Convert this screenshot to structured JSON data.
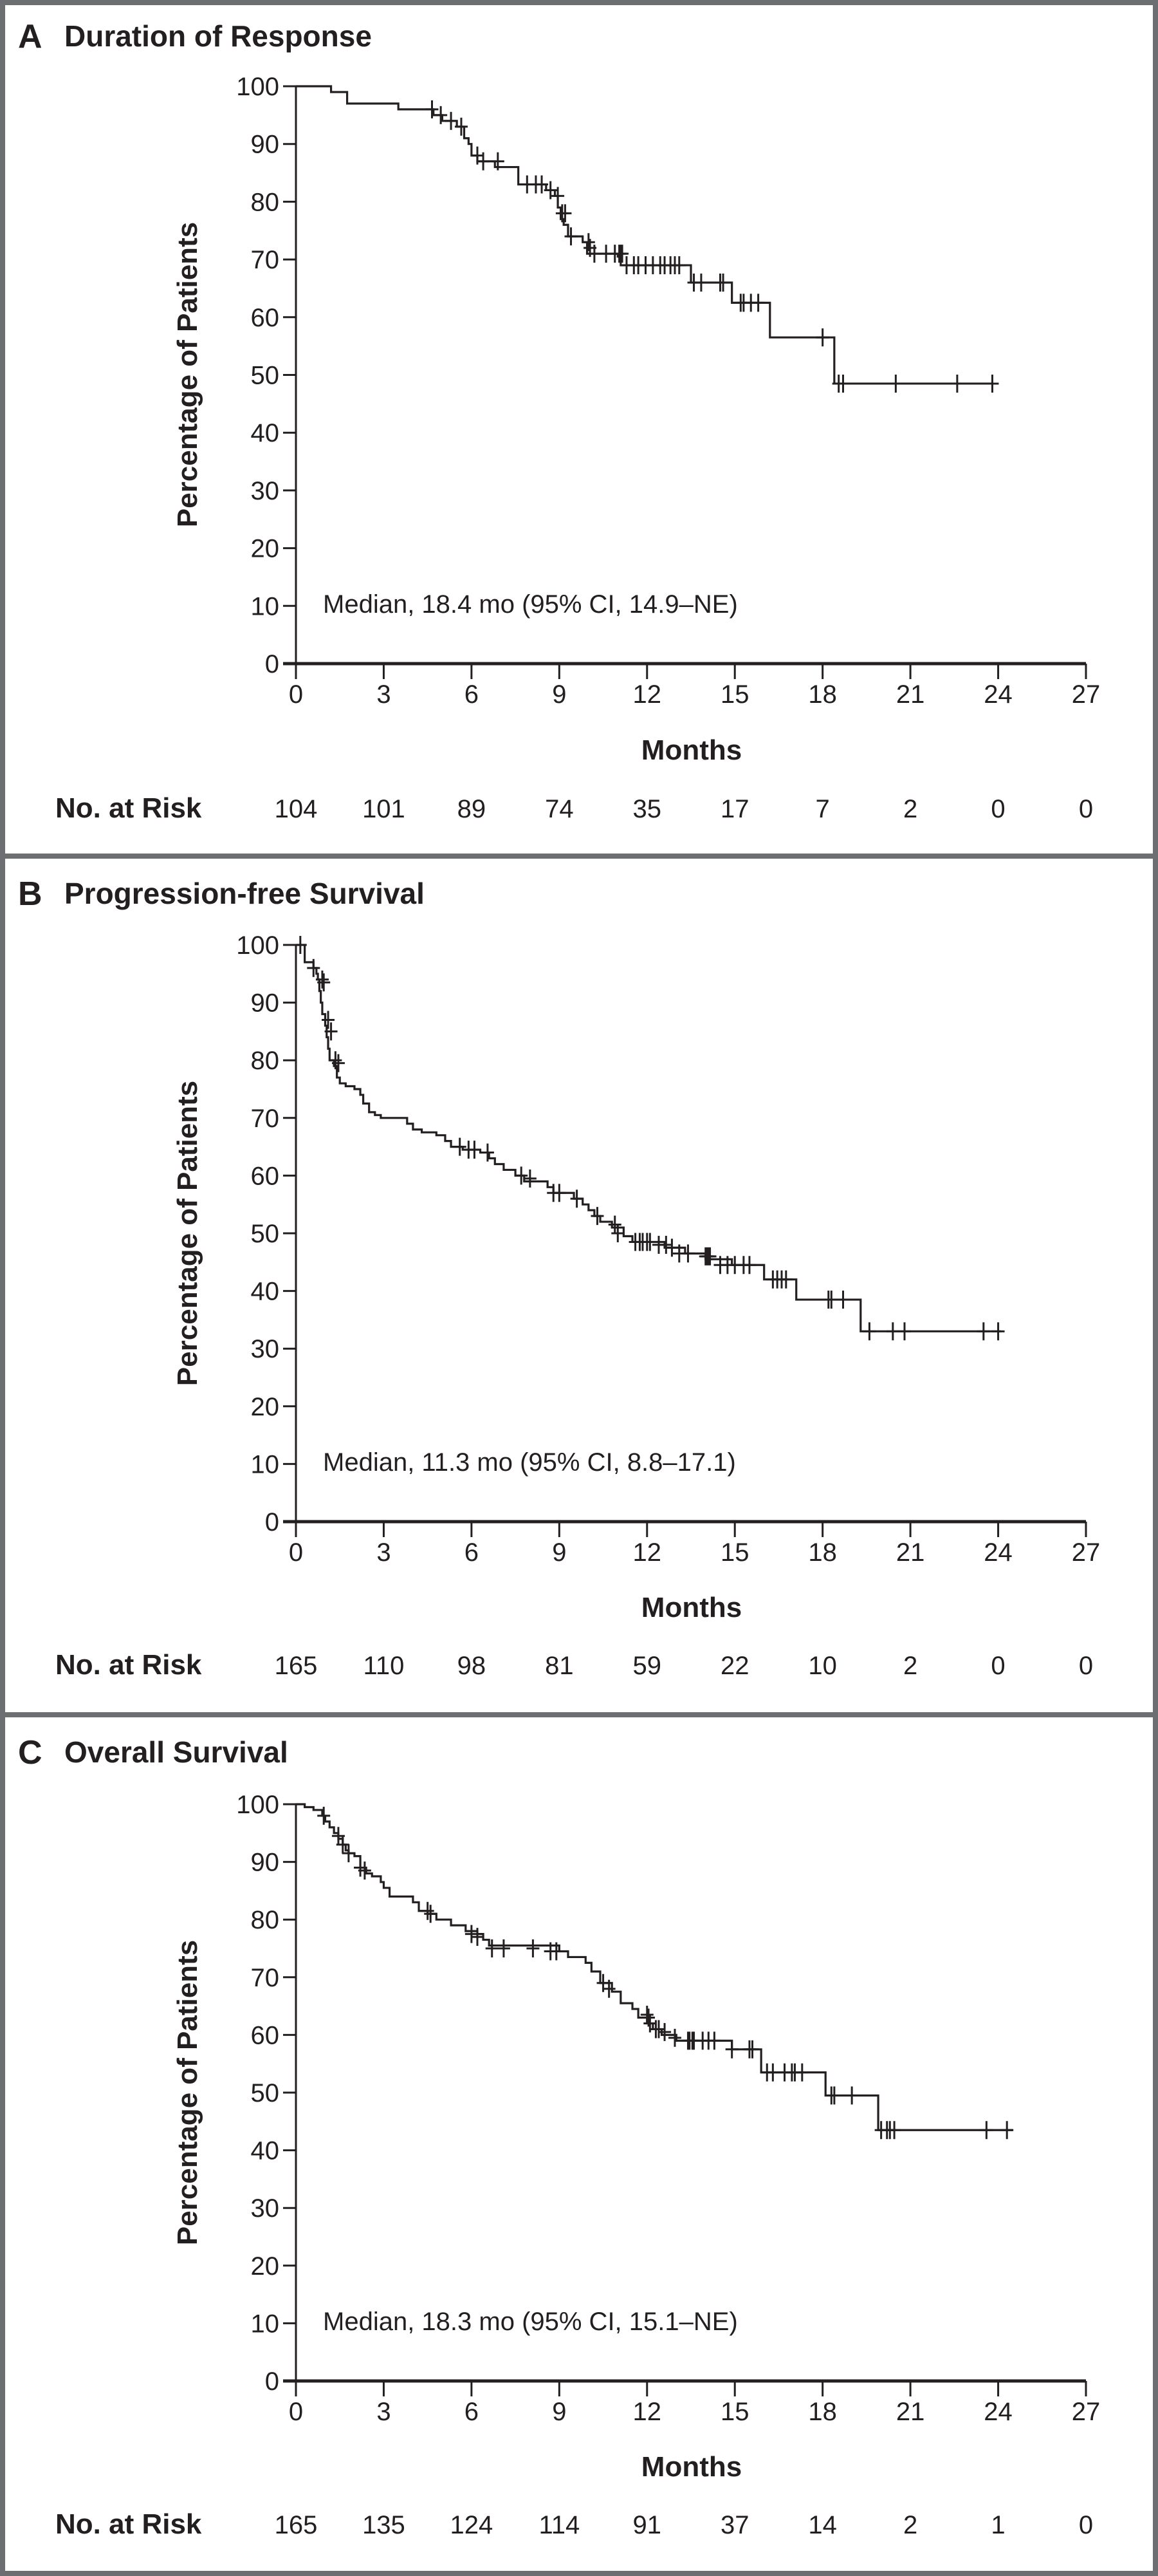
{
  "figure": {
    "panels": [
      {
        "letter": "A",
        "title": "Duration of Response"
      },
      {
        "letter": "B",
        "title": "Progression-free Survival"
      },
      {
        "letter": "C",
        "title": "Overall Survival"
      }
    ]
  },
  "chart_data": [
    {
      "type": "line",
      "subtype": "kaplan-meier",
      "panel": "A",
      "title": "Duration of Response",
      "xlabel": "Months",
      "ylabel": "Percentage of Patients",
      "xlim": [
        0,
        27
      ],
      "ylim": [
        0,
        100
      ],
      "x_ticks": [
        "0",
        "3",
        "6",
        "9",
        "12",
        "15",
        "18",
        "21",
        "24",
        "27"
      ],
      "y_ticks": [
        "0",
        "10",
        "20",
        "30",
        "40",
        "50",
        "60",
        "70",
        "80",
        "90",
        "100"
      ],
      "grid": false,
      "annotation": "Median, 18.4 mo (95% CI, 14.9–NE)",
      "risk_table": {
        "label": "No. at Risk",
        "times": [
          0,
          3,
          6,
          9,
          12,
          15,
          18,
          21,
          24,
          27
        ],
        "values": [
          "104",
          "101",
          "89",
          "74",
          "35",
          "17",
          "7",
          "2",
          "0",
          "0"
        ]
      },
      "steps": [
        [
          0,
          100
        ],
        [
          1.2,
          99
        ],
        [
          1.75,
          97
        ],
        [
          3.5,
          96
        ],
        [
          4.7,
          95
        ],
        [
          5.0,
          94
        ],
        [
          5.5,
          93
        ],
        [
          5.75,
          91
        ],
        [
          5.9,
          90
        ],
        [
          6.0,
          88
        ],
        [
          6.2,
          87
        ],
        [
          6.8,
          86
        ],
        [
          7.6,
          83
        ],
        [
          8.55,
          82
        ],
        [
          8.85,
          81
        ],
        [
          8.95,
          79
        ],
        [
          9.05,
          77
        ],
        [
          9.15,
          76
        ],
        [
          9.3,
          74
        ],
        [
          9.8,
          73
        ],
        [
          9.95,
          71
        ],
        [
          11.0,
          70.5
        ],
        [
          11.1,
          69
        ],
        [
          13.5,
          66
        ],
        [
          14.9,
          62.5
        ],
        [
          16.2,
          56.5
        ],
        [
          18.4,
          48.5
        ]
      ],
      "end_time": 23.8,
      "censored": [
        [
          4.65,
          96
        ],
        [
          4.95,
          95
        ],
        [
          5.3,
          94
        ],
        [
          5.65,
          93
        ],
        [
          6.2,
          88
        ],
        [
          6.4,
          87
        ],
        [
          6.9,
          87
        ],
        [
          7.9,
          83
        ],
        [
          8.2,
          83
        ],
        [
          8.4,
          83
        ],
        [
          8.7,
          82
        ],
        [
          8.95,
          81
        ],
        [
          9.1,
          78
        ],
        [
          9.2,
          78
        ],
        [
          9.4,
          74
        ],
        [
          10.0,
          73
        ],
        [
          10.05,
          72
        ],
        [
          10.2,
          71
        ],
        [
          10.6,
          71
        ],
        [
          10.9,
          71
        ],
        [
          11.05,
          71
        ],
        [
          11.1,
          71
        ],
        [
          11.15,
          71
        ],
        [
          11.3,
          69
        ],
        [
          11.55,
          69
        ],
        [
          11.7,
          69
        ],
        [
          11.95,
          69
        ],
        [
          12.2,
          69
        ],
        [
          12.45,
          69
        ],
        [
          12.6,
          69
        ],
        [
          12.8,
          69
        ],
        [
          12.95,
          69
        ],
        [
          13.1,
          69
        ],
        [
          13.6,
          66
        ],
        [
          13.85,
          66
        ],
        [
          14.5,
          66
        ],
        [
          14.6,
          66
        ],
        [
          15.2,
          62.5
        ],
        [
          15.3,
          62.5
        ],
        [
          15.55,
          62.5
        ],
        [
          15.8,
          62.5
        ],
        [
          18.0,
          56.5
        ],
        [
          18.55,
          48.5
        ],
        [
          18.7,
          48.5
        ],
        [
          20.5,
          48.5
        ],
        [
          22.6,
          48.5
        ],
        [
          23.8,
          48.5
        ]
      ]
    },
    {
      "type": "line",
      "subtype": "kaplan-meier",
      "panel": "B",
      "title": "Progression-free Survival",
      "xlabel": "Months",
      "ylabel": "Percentage of Patients",
      "xlim": [
        0,
        27
      ],
      "ylim": [
        0,
        100
      ],
      "x_ticks": [
        "0",
        "3",
        "6",
        "9",
        "12",
        "15",
        "18",
        "21",
        "24",
        "27"
      ],
      "y_ticks": [
        "0",
        "10",
        "20",
        "30",
        "40",
        "50",
        "60",
        "70",
        "80",
        "90",
        "100"
      ],
      "grid": false,
      "annotation": "Median, 11.3 mo (95% CI, 8.8–17.1)",
      "risk_table": {
        "label": "No. at Risk",
        "times": [
          0,
          3,
          6,
          9,
          12,
          15,
          18,
          21,
          24,
          27
        ],
        "values": [
          "165",
          "110",
          "98",
          "81",
          "59",
          "22",
          "10",
          "2",
          "0",
          "0"
        ]
      },
      "steps": [
        [
          0,
          100
        ],
        [
          0.3,
          97
        ],
        [
          0.6,
          96
        ],
        [
          0.7,
          95
        ],
        [
          0.75,
          94
        ],
        [
          0.8,
          92
        ],
        [
          0.85,
          90
        ],
        [
          0.9,
          88
        ],
        [
          1.0,
          86
        ],
        [
          1.05,
          84
        ],
        [
          1.1,
          82
        ],
        [
          1.15,
          80
        ],
        [
          1.3,
          79
        ],
        [
          1.4,
          77
        ],
        [
          1.5,
          76
        ],
        [
          1.7,
          75.5
        ],
        [
          2.0,
          75
        ],
        [
          2.2,
          74
        ],
        [
          2.3,
          72.5
        ],
        [
          2.5,
          71
        ],
        [
          2.7,
          70.5
        ],
        [
          2.9,
          70
        ],
        [
          3.8,
          69
        ],
        [
          4.0,
          68
        ],
        [
          4.3,
          67.5
        ],
        [
          4.8,
          67
        ],
        [
          5.1,
          66
        ],
        [
          5.3,
          65
        ],
        [
          5.7,
          64.5
        ],
        [
          6.3,
          64
        ],
        [
          6.6,
          63
        ],
        [
          6.8,
          62
        ],
        [
          7.1,
          61
        ],
        [
          7.5,
          60
        ],
        [
          7.8,
          59
        ],
        [
          8.6,
          58
        ],
        [
          8.8,
          57
        ],
        [
          9.5,
          56
        ],
        [
          9.8,
          55
        ],
        [
          10.0,
          54
        ],
        [
          10.2,
          53
        ],
        [
          10.4,
          52
        ],
        [
          10.8,
          51
        ],
        [
          11.2,
          49.5
        ],
        [
          11.5,
          48.5
        ],
        [
          12.6,
          47.5
        ],
        [
          13.3,
          46.5
        ],
        [
          14.0,
          45.5
        ],
        [
          14.9,
          44.5
        ],
        [
          16.0,
          42
        ],
        [
          17.1,
          38.5
        ],
        [
          19.3,
          33
        ]
      ],
      "end_time": 24.1,
      "censored": [
        [
          0.15,
          100
        ],
        [
          0.6,
          96
        ],
        [
          0.9,
          94
        ],
        [
          0.95,
          93.5
        ],
        [
          1.1,
          87
        ],
        [
          1.2,
          85
        ],
        [
          1.35,
          80
        ],
        [
          1.45,
          79.5
        ],
        [
          5.6,
          65
        ],
        [
          5.9,
          64.5
        ],
        [
          6.1,
          64.5
        ],
        [
          6.55,
          64
        ],
        [
          7.7,
          60
        ],
        [
          8.0,
          59.5
        ],
        [
          8.8,
          57
        ],
        [
          9.0,
          57
        ],
        [
          9.6,
          56
        ],
        [
          10.3,
          53
        ],
        [
          10.9,
          51.5
        ],
        [
          11.0,
          50
        ],
        [
          11.6,
          48.5
        ],
        [
          11.75,
          48.5
        ],
        [
          11.85,
          48.5
        ],
        [
          12.0,
          48.5
        ],
        [
          12.1,
          48.5
        ],
        [
          12.4,
          48
        ],
        [
          12.65,
          48
        ],
        [
          12.85,
          47.5
        ],
        [
          13.1,
          46.5
        ],
        [
          13.4,
          46.5
        ],
        [
          14.0,
          46
        ],
        [
          14.05,
          46
        ],
        [
          14.1,
          46
        ],
        [
          14.15,
          46
        ],
        [
          14.5,
          44.5
        ],
        [
          14.75,
          44.5
        ],
        [
          15.0,
          44.5
        ],
        [
          15.3,
          44.5
        ],
        [
          15.5,
          44.5
        ],
        [
          16.3,
          42
        ],
        [
          16.45,
          42
        ],
        [
          16.6,
          42
        ],
        [
          16.75,
          42
        ],
        [
          18.2,
          38.5
        ],
        [
          18.3,
          38.5
        ],
        [
          18.7,
          38.5
        ],
        [
          19.6,
          33
        ],
        [
          20.4,
          33
        ],
        [
          20.8,
          33
        ],
        [
          23.5,
          33
        ],
        [
          24.0,
          33
        ]
      ]
    },
    {
      "type": "line",
      "subtype": "kaplan-meier",
      "panel": "C",
      "title": "Overall Survival",
      "xlabel": "Months",
      "ylabel": "Percentage of Patients",
      "xlim": [
        0,
        27
      ],
      "ylim": [
        0,
        100
      ],
      "x_ticks": [
        "0",
        "3",
        "6",
        "9",
        "12",
        "15",
        "18",
        "21",
        "24",
        "27"
      ],
      "y_ticks": [
        "0",
        "10",
        "20",
        "30",
        "40",
        "50",
        "60",
        "70",
        "80",
        "90",
        "100"
      ],
      "grid": false,
      "annotation": "Median, 18.3 mo (95% CI, 15.1–NE)",
      "risk_table": {
        "label": "No. at Risk",
        "times": [
          0,
          3,
          6,
          9,
          12,
          15,
          18,
          21,
          24,
          27
        ],
        "values": [
          "165",
          "135",
          "124",
          "114",
          "91",
          "37",
          "14",
          "2",
          "1",
          "0"
        ]
      },
      "steps": [
        [
          0,
          100
        ],
        [
          0.3,
          99.5
        ],
        [
          0.6,
          99
        ],
        [
          0.9,
          98
        ],
        [
          1.0,
          97
        ],
        [
          1.15,
          96
        ],
        [
          1.3,
          95
        ],
        [
          1.45,
          94
        ],
        [
          1.6,
          93
        ],
        [
          1.7,
          92
        ],
        [
          1.8,
          91.5
        ],
        [
          2.0,
          91
        ],
        [
          2.2,
          89
        ],
        [
          2.4,
          88
        ],
        [
          2.6,
          87.5
        ],
        [
          2.9,
          86.5
        ],
        [
          3.0,
          85.5
        ],
        [
          3.2,
          84
        ],
        [
          4.0,
          83
        ],
        [
          4.2,
          81.5
        ],
        [
          4.5,
          81
        ],
        [
          4.8,
          80
        ],
        [
          5.3,
          79
        ],
        [
          5.8,
          78
        ],
        [
          6.2,
          77.5
        ],
        [
          6.4,
          76.5
        ],
        [
          6.6,
          75.5
        ],
        [
          9.0,
          74.5
        ],
        [
          9.3,
          73.5
        ],
        [
          9.9,
          72.5
        ],
        [
          10.1,
          71
        ],
        [
          10.4,
          69
        ],
        [
          10.8,
          67.5
        ],
        [
          11.1,
          65.5
        ],
        [
          11.5,
          64.5
        ],
        [
          11.7,
          63
        ],
        [
          12.0,
          62
        ],
        [
          12.2,
          61
        ],
        [
          12.5,
          60
        ],
        [
          13.0,
          59
        ],
        [
          14.9,
          57.5
        ],
        [
          15.9,
          53.5
        ],
        [
          18.1,
          49.5
        ],
        [
          19.9,
          43.5
        ]
      ],
      "end_time": 24.5,
      "censored": [
        [
          0.95,
          98
        ],
        [
          1.45,
          94.5
        ],
        [
          1.6,
          93
        ],
        [
          1.8,
          91.5
        ],
        [
          2.2,
          89
        ],
        [
          2.35,
          88.5
        ],
        [
          4.5,
          81.5
        ],
        [
          4.6,
          81
        ],
        [
          6.0,
          77.5
        ],
        [
          6.2,
          77
        ],
        [
          6.7,
          75
        ],
        [
          7.1,
          75
        ],
        [
          8.1,
          75
        ],
        [
          8.7,
          74.5
        ],
        [
          8.9,
          74.5
        ],
        [
          10.5,
          69
        ],
        [
          10.7,
          68
        ],
        [
          12.0,
          63.5
        ],
        [
          12.05,
          63
        ],
        [
          12.1,
          62
        ],
        [
          12.3,
          61
        ],
        [
          12.4,
          61
        ],
        [
          12.6,
          60.5
        ],
        [
          12.95,
          59.5
        ],
        [
          13.4,
          59
        ],
        [
          13.45,
          59
        ],
        [
          13.55,
          59
        ],
        [
          13.6,
          59
        ],
        [
          13.9,
          59
        ],
        [
          14.1,
          59
        ],
        [
          14.3,
          59
        ],
        [
          14.9,
          57.5
        ],
        [
          15.5,
          57.5
        ],
        [
          15.6,
          57.5
        ],
        [
          16.1,
          53.5
        ],
        [
          16.3,
          53.5
        ],
        [
          16.7,
          53.5
        ],
        [
          16.95,
          53.5
        ],
        [
          17.05,
          53.5
        ],
        [
          17.3,
          53.5
        ],
        [
          18.3,
          49.5
        ],
        [
          18.4,
          49.5
        ],
        [
          19.0,
          49.5
        ],
        [
          20.0,
          43.5
        ],
        [
          20.2,
          43.5
        ],
        [
          20.3,
          43.5
        ],
        [
          20.45,
          43.5
        ],
        [
          23.6,
          43.5
        ],
        [
          24.3,
          43.5
        ]
      ]
    }
  ]
}
